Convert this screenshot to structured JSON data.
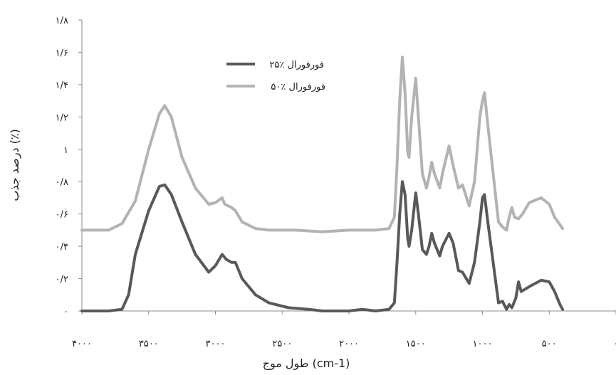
{
  "chart_data": {
    "type": "line",
    "xlabel": "طول موج (cm-1)",
    "ylabel": "درصد جذب (٪)",
    "xlim": [
      4000,
      0
    ],
    "ylim": [
      0,
      1.8
    ],
    "grid": false,
    "legend_position": "top-left",
    "x_ticks": [
      4000,
      3500,
      3000,
      2500,
      2000,
      1500,
      1000,
      500,
      0
    ],
    "x_tick_labels": [
      "۴۰۰۰",
      "۳۵۰۰",
      "۳۰۰۰",
      "۲۵۰۰",
      "۲۰۰۰",
      "۱۵۰۰",
      "۱۰۰۰",
      "۵۰۰",
      "۰"
    ],
    "y_ticks": [
      0,
      0.2,
      0.4,
      0.6,
      0.8,
      1.0,
      1.2,
      1.4,
      1.6,
      1.8
    ],
    "y_tick_labels": [
      "۰",
      "۰/۲",
      "۰/۴",
      "۰/۶",
      "۰/۸",
      "۱",
      "۱/۲",
      "۱/۴",
      "۱/۶",
      "۱/۸"
    ],
    "series": [
      {
        "name": "۲۵٪ فورفورال",
        "color": "#595959",
        "points": [
          [
            4000,
            0
          ],
          [
            3800,
            0
          ],
          [
            3700,
            0.01
          ],
          [
            3650,
            0.1
          ],
          [
            3600,
            0.35
          ],
          [
            3500,
            0.62
          ],
          [
            3420,
            0.77
          ],
          [
            3380,
            0.78
          ],
          [
            3330,
            0.72
          ],
          [
            3250,
            0.55
          ],
          [
            3150,
            0.35
          ],
          [
            3050,
            0.24
          ],
          [
            3000,
            0.28
          ],
          [
            2950,
            0.35
          ],
          [
            2920,
            0.32
          ],
          [
            2880,
            0.3
          ],
          [
            2850,
            0.3
          ],
          [
            2800,
            0.2
          ],
          [
            2700,
            0.1
          ],
          [
            2600,
            0.05
          ],
          [
            2450,
            0.02
          ],
          [
            2300,
            0.01
          ],
          [
            2200,
            0
          ],
          [
            2000,
            0
          ],
          [
            1900,
            0.01
          ],
          [
            1800,
            0
          ],
          [
            1700,
            0.01
          ],
          [
            1660,
            0.05
          ],
          [
            1640,
            0.3
          ],
          [
            1620,
            0.6
          ],
          [
            1600,
            0.8
          ],
          [
            1580,
            0.72
          ],
          [
            1560,
            0.45
          ],
          [
            1550,
            0.4
          ],
          [
            1530,
            0.5
          ],
          [
            1500,
            0.73
          ],
          [
            1480,
            0.6
          ],
          [
            1450,
            0.38
          ],
          [
            1420,
            0.35
          ],
          [
            1400,
            0.4
          ],
          [
            1380,
            0.48
          ],
          [
            1360,
            0.42
          ],
          [
            1320,
            0.34
          ],
          [
            1300,
            0.4
          ],
          [
            1250,
            0.48
          ],
          [
            1220,
            0.42
          ],
          [
            1180,
            0.25
          ],
          [
            1150,
            0.24
          ],
          [
            1100,
            0.17
          ],
          [
            1060,
            0.3
          ],
          [
            1020,
            0.55
          ],
          [
            1000,
            0.7
          ],
          [
            985,
            0.72
          ],
          [
            960,
            0.55
          ],
          [
            920,
            0.3
          ],
          [
            880,
            0.05
          ],
          [
            850,
            0.06
          ],
          [
            820,
            0.01
          ],
          [
            800,
            0.04
          ],
          [
            780,
            0.02
          ],
          [
            750,
            0.08
          ],
          [
            730,
            0.18
          ],
          [
            710,
            0.12
          ],
          [
            650,
            0.15
          ],
          [
            560,
            0.19
          ],
          [
            500,
            0.18
          ],
          [
            460,
            0.12
          ],
          [
            420,
            0.04
          ],
          [
            400,
            0.01
          ]
        ]
      },
      {
        "name": "۵۰٪ فورفورال",
        "color": "#b3b3b3",
        "points": [
          [
            4000,
            0.5
          ],
          [
            3800,
            0.5
          ],
          [
            3700,
            0.54
          ],
          [
            3600,
            0.68
          ],
          [
            3500,
            1.0
          ],
          [
            3420,
            1.22
          ],
          [
            3380,
            1.27
          ],
          [
            3330,
            1.2
          ],
          [
            3250,
            0.95
          ],
          [
            3150,
            0.76
          ],
          [
            3050,
            0.66
          ],
          [
            3000,
            0.67
          ],
          [
            2950,
            0.7
          ],
          [
            2930,
            0.66
          ],
          [
            2880,
            0.64
          ],
          [
            2850,
            0.62
          ],
          [
            2800,
            0.55
          ],
          [
            2700,
            0.51
          ],
          [
            2600,
            0.5
          ],
          [
            2400,
            0.5
          ],
          [
            2200,
            0.49
          ],
          [
            2000,
            0.5
          ],
          [
            1800,
            0.5
          ],
          [
            1700,
            0.51
          ],
          [
            1660,
            0.58
          ],
          [
            1640,
            0.9
          ],
          [
            1620,
            1.3
          ],
          [
            1600,
            1.57
          ],
          [
            1580,
            1.35
          ],
          [
            1560,
            0.98
          ],
          [
            1550,
            0.95
          ],
          [
            1530,
            1.2
          ],
          [
            1500,
            1.44
          ],
          [
            1480,
            1.2
          ],
          [
            1450,
            0.85
          ],
          [
            1420,
            0.76
          ],
          [
            1400,
            0.83
          ],
          [
            1380,
            0.92
          ],
          [
            1360,
            0.85
          ],
          [
            1320,
            0.76
          ],
          [
            1300,
            0.85
          ],
          [
            1250,
            1.02
          ],
          [
            1220,
            0.9
          ],
          [
            1180,
            0.76
          ],
          [
            1150,
            0.78
          ],
          [
            1100,
            0.65
          ],
          [
            1060,
            0.8
          ],
          [
            1020,
            1.2
          ],
          [
            1000,
            1.3
          ],
          [
            985,
            1.35
          ],
          [
            960,
            1.15
          ],
          [
            920,
            0.85
          ],
          [
            880,
            0.55
          ],
          [
            850,
            0.52
          ],
          [
            820,
            0.5
          ],
          [
            800,
            0.58
          ],
          [
            780,
            0.64
          ],
          [
            760,
            0.58
          ],
          [
            730,
            0.57
          ],
          [
            700,
            0.6
          ],
          [
            650,
            0.67
          ],
          [
            560,
            0.7
          ],
          [
            500,
            0.66
          ],
          [
            460,
            0.58
          ],
          [
            400,
            0.51
          ]
        ]
      }
    ]
  }
}
